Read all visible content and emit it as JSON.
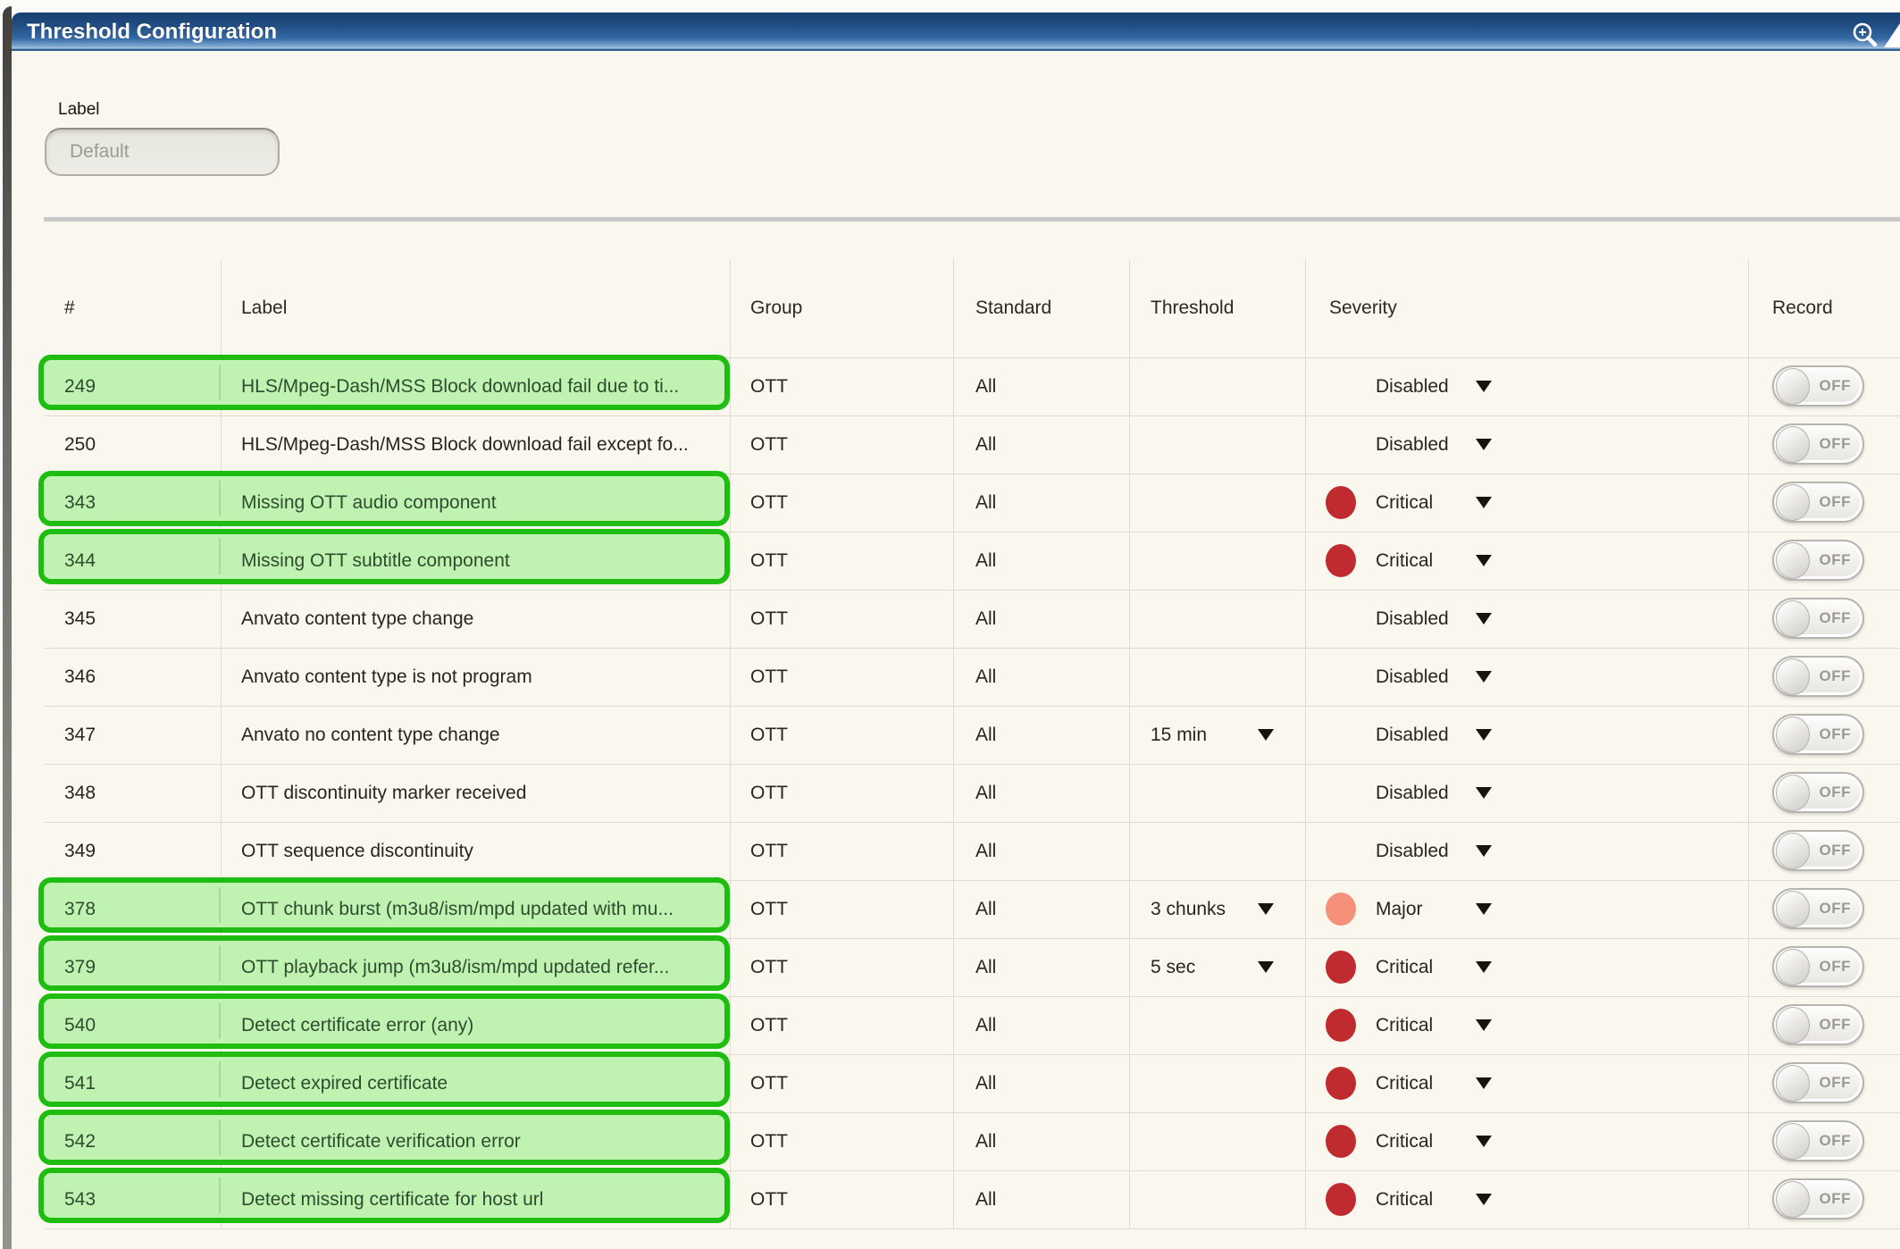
{
  "window": {
    "title": "Threshold Configuration"
  },
  "form": {
    "field_label": "Label",
    "field_value": "Default"
  },
  "table": {
    "headers": {
      "num": "#",
      "label": "Label",
      "group": "Group",
      "standard": "Standard",
      "threshold": "Threshold",
      "severity": "Severity",
      "record": "Record"
    },
    "rows": [
      {
        "num": "249",
        "label": "HLS/Mpeg-Dash/MSS Block download fail due to ti...",
        "group": "OTT",
        "standard": "All",
        "threshold": "",
        "severity": "Disabled",
        "severity_color": "",
        "record": "OFF",
        "highlighted": true
      },
      {
        "num": "250",
        "label": "HLS/Mpeg-Dash/MSS Block download fail except fo...",
        "group": "OTT",
        "standard": "All",
        "threshold": "",
        "severity": "Disabled",
        "severity_color": "",
        "record": "OFF",
        "highlighted": false
      },
      {
        "num": "343",
        "label": "Missing OTT audio component",
        "group": "OTT",
        "standard": "All",
        "threshold": "",
        "severity": "Critical",
        "severity_color": "critical",
        "record": "OFF",
        "highlighted": true
      },
      {
        "num": "344",
        "label": "Missing OTT subtitle component",
        "group": "OTT",
        "standard": "All",
        "threshold": "",
        "severity": "Critical",
        "severity_color": "critical",
        "record": "OFF",
        "highlighted": true
      },
      {
        "num": "345",
        "label": "Anvato content type change",
        "group": "OTT",
        "standard": "All",
        "threshold": "",
        "severity": "Disabled",
        "severity_color": "",
        "record": "OFF",
        "highlighted": false
      },
      {
        "num": "346",
        "label": "Anvato content type is not program",
        "group": "OTT",
        "standard": "All",
        "threshold": "",
        "severity": "Disabled",
        "severity_color": "",
        "record": "OFF",
        "highlighted": false
      },
      {
        "num": "347",
        "label": "Anvato no content type change",
        "group": "OTT",
        "standard": "All",
        "threshold": "15 min",
        "severity": "Disabled",
        "severity_color": "",
        "record": "OFF",
        "highlighted": false
      },
      {
        "num": "348",
        "label": "OTT discontinuity marker received",
        "group": "OTT",
        "standard": "All",
        "threshold": "",
        "severity": "Disabled",
        "severity_color": "",
        "record": "OFF",
        "highlighted": false
      },
      {
        "num": "349",
        "label": "OTT sequence discontinuity",
        "group": "OTT",
        "standard": "All",
        "threshold": "",
        "severity": "Disabled",
        "severity_color": "",
        "record": "OFF",
        "highlighted": false
      },
      {
        "num": "378",
        "label": "OTT chunk burst (m3u8/ism/mpd updated with mu...",
        "group": "OTT",
        "standard": "All",
        "threshold": "3 chunks",
        "severity": "Major",
        "severity_color": "major",
        "record": "OFF",
        "highlighted": true
      },
      {
        "num": "379",
        "label": "OTT playback jump (m3u8/ism/mpd updated refer...",
        "group": "OTT",
        "standard": "All",
        "threshold": "5 sec",
        "severity": "Critical",
        "severity_color": "critical",
        "record": "OFF",
        "highlighted": true
      },
      {
        "num": "540",
        "label": "Detect certificate error (any)",
        "group": "OTT",
        "standard": "All",
        "threshold": "",
        "severity": "Critical",
        "severity_color": "critical",
        "record": "OFF",
        "highlighted": true
      },
      {
        "num": "541",
        "label": "Detect expired certificate",
        "group": "OTT",
        "standard": "All",
        "threshold": "",
        "severity": "Critical",
        "severity_color": "critical",
        "record": "OFF",
        "highlighted": true
      },
      {
        "num": "542",
        "label": "Detect certificate verification error",
        "group": "OTT",
        "standard": "All",
        "threshold": "",
        "severity": "Critical",
        "severity_color": "critical",
        "record": "OFF",
        "highlighted": true
      },
      {
        "num": "543",
        "label": "Detect missing certificate for host url",
        "group": "OTT",
        "standard": "All",
        "threshold": "",
        "severity": "Critical",
        "severity_color": "critical",
        "record": "OFF",
        "highlighted": true
      }
    ]
  },
  "colors": {
    "critical": "#c02b30",
    "major": "#f5917a",
    "highlight_border": "#1fbd11",
    "highlight_bg": "#c0f2b2",
    "titlebar_blue": "#2a5b97"
  }
}
